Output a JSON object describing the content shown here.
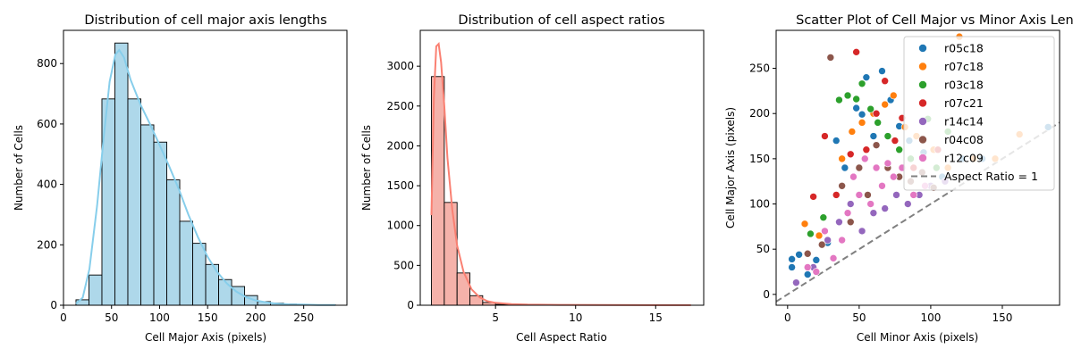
{
  "chart_data": [
    {
      "type": "bar",
      "title": "Distribution of cell major axis lengths",
      "xlabel": "Cell Major Axis (pixels)",
      "ylabel": "Number of Cells",
      "xlim": [
        0,
        295
      ],
      "ylim": [
        0,
        910
      ],
      "xticks": [
        0,
        50,
        100,
        150,
        200,
        250
      ],
      "yticks": [
        0,
        200,
        400,
        600,
        800
      ],
      "bar_color": "#aed8ea",
      "kde_color": "#87ceeb",
      "bin_edges": [
        13,
        26.5,
        40,
        53.5,
        67,
        80.5,
        94,
        107.5,
        121,
        134.5,
        148,
        161.5,
        175,
        188.5,
        202,
        215.5,
        229,
        242.5,
        256,
        269.5,
        283
      ],
      "values": [
        18,
        100,
        683,
        868,
        683,
        597,
        540,
        415,
        278,
        205,
        135,
        85,
        62,
        32,
        12,
        7,
        4,
        2,
        1,
        1
      ],
      "kde": [
        [
          13,
          5
        ],
        [
          20,
          25
        ],
        [
          27,
          120
        ],
        [
          35,
          330
        ],
        [
          42,
          560
        ],
        [
          48,
          740
        ],
        [
          54,
          830
        ],
        [
          58,
          845
        ],
        [
          63,
          820
        ],
        [
          70,
          745
        ],
        [
          80,
          665
        ],
        [
          90,
          600
        ],
        [
          100,
          530
        ],
        [
          110,
          460
        ],
        [
          120,
          385
        ],
        [
          130,
          300
        ],
        [
          140,
          225
        ],
        [
          150,
          160
        ],
        [
          160,
          110
        ],
        [
          170,
          72
        ],
        [
          180,
          45
        ],
        [
          190,
          27
        ],
        [
          200,
          16
        ],
        [
          210,
          10
        ],
        [
          220,
          6
        ],
        [
          235,
          3
        ],
        [
          250,
          2
        ],
        [
          265,
          1
        ],
        [
          283,
          1
        ]
      ]
    },
    {
      "type": "bar",
      "title": "Distribution of cell aspect ratios",
      "xlabel": "Cell Aspect Ratio",
      "ylabel": "Number of Cells",
      "xlim": [
        0.3,
        18.0
      ],
      "ylim": [
        0,
        3450
      ],
      "xticks": [
        5,
        10,
        15
      ],
      "yticks": [
        0,
        500,
        1000,
        1500,
        2000,
        2500,
        3000
      ],
      "bar_color": "#f5b2aa",
      "kde_color": "#fa8072",
      "bin_edges": [
        1.0,
        1.8,
        2.6,
        3.4,
        4.2,
        5.0,
        5.8,
        6.6,
        7.4,
        8.2,
        9.0,
        9.8,
        10.6,
        11.4,
        12.2,
        13.0,
        13.8,
        14.6,
        15.4,
        16.2,
        17.0
      ],
      "values": [
        2870,
        1290,
        405,
        120,
        35,
        10,
        5,
        3,
        2,
        1,
        1,
        1,
        0,
        0,
        0,
        0,
        0,
        0,
        0,
        1
      ],
      "kde": [
        [
          1.0,
          1130
        ],
        [
          1.15,
          2600
        ],
        [
          1.3,
          3250
        ],
        [
          1.45,
          3280
        ],
        [
          1.6,
          3050
        ],
        [
          1.8,
          2500
        ],
        [
          2.0,
          1850
        ],
        [
          2.3,
          1200
        ],
        [
          2.6,
          750
        ],
        [
          3.0,
          420
        ],
        [
          3.5,
          200
        ],
        [
          4.0,
          100
        ],
        [
          4.5,
          50
        ],
        [
          5.0,
          30
        ],
        [
          6.0,
          15
        ],
        [
          7.0,
          8
        ],
        [
          9.0,
          4
        ],
        [
          12.0,
          2
        ],
        [
          15.0,
          1
        ],
        [
          17.2,
          1
        ]
      ]
    },
    {
      "type": "scatter",
      "title": "Scatter Plot of Cell Major vs Minor Axis Leng",
      "xlabel": "Cell Minor Axis (pixels)",
      "ylabel": "Cell Major Axis (pixels)",
      "xlim": [
        -8,
        190
      ],
      "ylim": [
        -12,
        292
      ],
      "xticks": [
        0,
        50,
        100,
        150
      ],
      "yticks": [
        0,
        50,
        100,
        150,
        200,
        250
      ],
      "legend_position": "top-right",
      "series": [
        {
          "name": "r05c18",
          "color": "#1f77b4",
          "points": [
            [
              3,
              30
            ],
            [
              3,
              39
            ],
            [
              8,
              44
            ],
            [
              14,
              22
            ],
            [
              20,
              38
            ],
            [
              28,
              57
            ],
            [
              34,
              170
            ],
            [
              40,
              140
            ],
            [
              48,
              206
            ],
            [
              52,
              199
            ],
            [
              55,
              240
            ],
            [
              60,
              175
            ],
            [
              66,
              247
            ],
            [
              72,
              215
            ],
            [
              78,
              186
            ],
            [
              85,
              170
            ],
            [
              95,
              157
            ],
            [
              108,
              130
            ],
            [
              122,
              150
            ],
            [
              136,
              150
            ],
            [
              182,
              185
            ]
          ]
        },
        {
          "name": "r07c18",
          "color": "#ff7f0e",
          "points": [
            [
              12,
              78
            ],
            [
              22,
              65
            ],
            [
              38,
              150
            ],
            [
              45,
              180
            ],
            [
              52,
              190
            ],
            [
              60,
              200
            ],
            [
              68,
              210
            ],
            [
              74,
              220
            ],
            [
              82,
              185
            ],
            [
              90,
              175
            ],
            [
              102,
              160
            ],
            [
              112,
              140
            ],
            [
              120,
              285
            ],
            [
              130,
              150
            ],
            [
              145,
              150
            ],
            [
              162,
              177
            ]
          ]
        },
        {
          "name": "r03c18",
          "color": "#2ca02c",
          "points": [
            [
              16,
              67
            ],
            [
              25,
              85
            ],
            [
              36,
              215
            ],
            [
              42,
              220
            ],
            [
              48,
              216
            ],
            [
              52,
              233
            ],
            [
              58,
              205
            ],
            [
              63,
              190
            ],
            [
              70,
              175
            ],
            [
              78,
              160
            ],
            [
              86,
              150
            ],
            [
              98,
              194
            ],
            [
              104,
              140
            ],
            [
              112,
              180
            ]
          ]
        },
        {
          "name": "r07c21",
          "color": "#d62728",
          "points": [
            [
              18,
              108
            ],
            [
              26,
              175
            ],
            [
              34,
              110
            ],
            [
              44,
              155
            ],
            [
              48,
              268
            ],
            [
              55,
              160
            ],
            [
              62,
              200
            ],
            [
              68,
              236
            ],
            [
              75,
              170
            ],
            [
              80,
              195
            ],
            [
              88,
              140
            ],
            [
              96,
              120
            ],
            [
              105,
              160
            ]
          ]
        },
        {
          "name": "r14c14",
          "color": "#9467bd",
          "points": [
            [
              6,
              13
            ],
            [
              18,
              30
            ],
            [
              28,
              60
            ],
            [
              36,
              80
            ],
            [
              44,
              100
            ],
            [
              52,
              70
            ],
            [
              60,
              90
            ],
            [
              68,
              95
            ],
            [
              76,
              110
            ],
            [
              84,
              100
            ],
            [
              92,
              110
            ],
            [
              100,
              120
            ],
            [
              110,
              125
            ]
          ]
        },
        {
          "name": "r04c08",
          "color": "#8c564b",
          "points": [
            [
              14,
              45
            ],
            [
              24,
              55
            ],
            [
              30,
              262
            ],
            [
              38,
              120
            ],
            [
              44,
              80
            ],
            [
              50,
              140
            ],
            [
              56,
              110
            ],
            [
              62,
              165
            ],
            [
              70,
              140
            ],
            [
              78,
              130
            ],
            [
              86,
              125
            ],
            [
              94,
              135
            ],
            [
              102,
              118
            ]
          ]
        },
        {
          "name": "r12c09",
          "color": "#e377c2",
          "points": [
            [
              14,
              30
            ],
            [
              20,
              25
            ],
            [
              26,
              70
            ],
            [
              32,
              40
            ],
            [
              38,
              60
            ],
            [
              42,
              90
            ],
            [
              46,
              130
            ],
            [
              50,
              110
            ],
            [
              54,
              150
            ],
            [
              58,
              100
            ],
            [
              62,
              140
            ],
            [
              66,
              120
            ],
            [
              70,
              145
            ],
            [
              74,
              130
            ],
            [
              80,
              140
            ],
            [
              88,
              110
            ],
            [
              96,
              120
            ]
          ]
        }
      ],
      "reference_line": {
        "label": "Aspect Ratio = 1",
        "color": "#808080"
      }
    }
  ]
}
